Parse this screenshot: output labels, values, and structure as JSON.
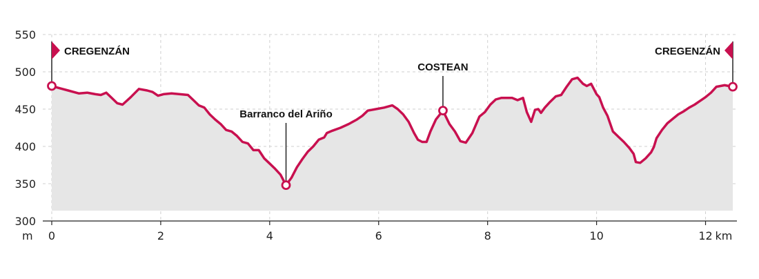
{
  "chart_data": {
    "type": "area",
    "title": "",
    "xlabel": "",
    "ylabel": "",
    "x_unit": "km",
    "y_unit": "m",
    "xlim": [
      0,
      12.5
    ],
    "ylim": [
      300,
      550
    ],
    "x_ticks": [
      0,
      2,
      4,
      6,
      8,
      10,
      12
    ],
    "y_ticks": [
      300,
      350,
      400,
      450,
      500,
      550
    ],
    "x_tick_labels": [
      "0",
      "2",
      "4",
      "6",
      "8",
      "10",
      "12"
    ],
    "y_tick_labels": [
      "300",
      "350",
      "400",
      "450",
      "500",
      "550"
    ],
    "grid": true,
    "colors": {
      "line": "#c8104f",
      "fill": "#e6e6e6",
      "grid": "#cfcfcf",
      "axis": "#222222"
    },
    "x": [
      0,
      0.15,
      0.3,
      0.5,
      0.65,
      0.8,
      0.9,
      1.0,
      1.1,
      1.2,
      1.3,
      1.45,
      1.6,
      1.75,
      1.85,
      1.95,
      2.05,
      2.2,
      2.35,
      2.5,
      2.6,
      2.7,
      2.8,
      2.9,
      3.0,
      3.1,
      3.2,
      3.3,
      3.4,
      3.5,
      3.6,
      3.7,
      3.8,
      3.9,
      4.0,
      4.1,
      4.2,
      4.3,
      4.4,
      4.5,
      4.6,
      4.7,
      4.8,
      4.9,
      5.0,
      5.05,
      5.15,
      5.3,
      5.45,
      5.6,
      5.7,
      5.8,
      5.95,
      6.1,
      6.25,
      6.35,
      6.45,
      6.55,
      6.65,
      6.72,
      6.8,
      6.88,
      6.95,
      7.05,
      7.18,
      7.3,
      7.4,
      7.5,
      7.6,
      7.72,
      7.85,
      7.95,
      8.05,
      8.15,
      8.25,
      8.45,
      8.55,
      8.65,
      8.72,
      8.8,
      8.87,
      8.93,
      8.98,
      9.05,
      9.15,
      9.25,
      9.35,
      9.45,
      9.55,
      9.65,
      9.75,
      9.82,
      9.9,
      10.0,
      10.05,
      10.12,
      10.2,
      10.3,
      10.4,
      10.5,
      10.6,
      10.68,
      10.72,
      10.8,
      10.9,
      11.0,
      11.05,
      11.1,
      11.2,
      11.3,
      11.4,
      11.5,
      11.6,
      11.7,
      11.8,
      11.9,
      12.0,
      12.1,
      12.2,
      12.35,
      12.5
    ],
    "y": [
      481,
      478,
      475,
      471,
      472,
      470,
      469,
      472,
      465,
      458,
      456,
      466,
      477,
      475,
      473,
      468,
      470,
      471,
      470,
      469,
      462,
      455,
      452,
      443,
      436,
      430,
      422,
      420,
      414,
      406,
      404,
      395,
      395,
      384,
      377,
      370,
      362,
      348,
      358,
      372,
      383,
      393,
      400,
      409,
      412,
      418,
      421,
      425,
      430,
      436,
      441,
      448,
      450,
      452,
      455,
      450,
      443,
      433,
      418,
      409,
      406,
      406,
      420,
      436,
      448,
      430,
      420,
      407,
      405,
      418,
      440,
      446,
      456,
      463,
      465,
      465,
      462,
      465,
      446,
      433,
      449,
      450,
      445,
      452,
      460,
      467,
      469,
      480,
      490,
      492,
      484,
      481,
      484,
      470,
      466,
      452,
      441,
      420,
      413,
      406,
      398,
      390,
      379,
      378,
      384,
      392,
      399,
      411,
      422,
      431,
      437,
      443,
      447,
      452,
      456,
      461,
      466,
      472,
      480,
      482,
      480
    ],
    "waypoints": [
      {
        "name": "CREGENZÁN",
        "x": 0,
        "y": 481,
        "flag": "start"
      },
      {
        "name": "Barranco del Ariño",
        "x": 4.3,
        "y": 348,
        "flag": "none"
      },
      {
        "name": "COSTEAN",
        "x": 7.18,
        "y": 448,
        "flag": "none"
      },
      {
        "name": "CREGENZÁN",
        "x": 12.5,
        "y": 480,
        "flag": "end"
      }
    ]
  }
}
